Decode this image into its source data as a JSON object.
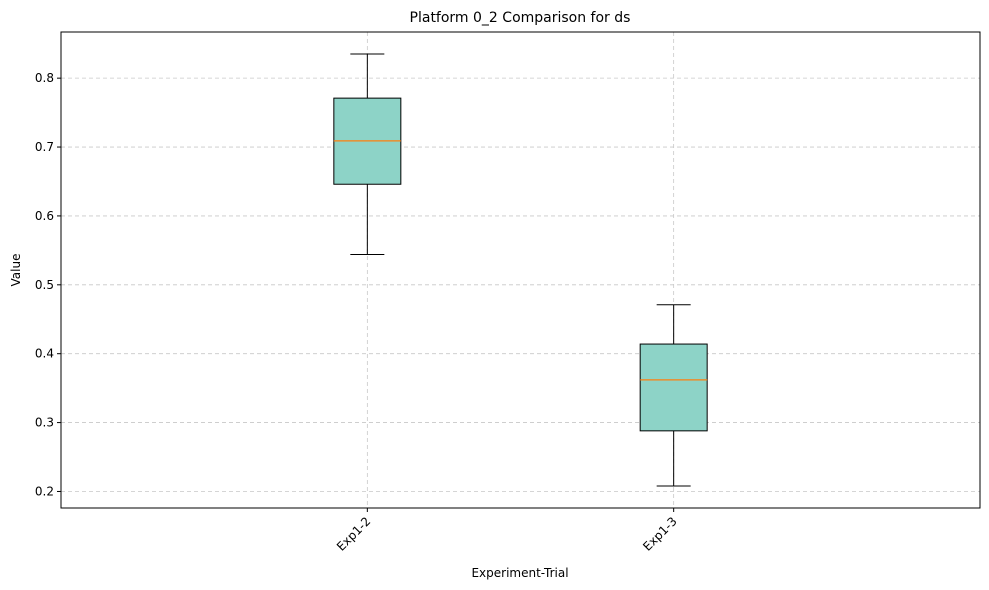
{
  "chart_data": {
    "type": "box",
    "title": "Platform 0_2 Comparison for ds",
    "xlabel": "Experiment-Trial",
    "ylabel": "Value",
    "categories": [
      "Exp1-2",
      "Exp1-3"
    ],
    "boxes": [
      {
        "name": "Exp1-2",
        "whisker_low": 0.544,
        "q1": 0.646,
        "median": 0.709,
        "q3": 0.771,
        "whisker_high": 0.835
      },
      {
        "name": "Exp1-3",
        "whisker_low": 0.208,
        "q1": 0.288,
        "median": 0.362,
        "q3": 0.414,
        "whisker_high": 0.471
      }
    ],
    "yticks": [
      0.2,
      0.3,
      0.4,
      0.5,
      0.6,
      0.7,
      0.8
    ],
    "ytick_labels": [
      "0.2",
      "0.3",
      "0.4",
      "0.5",
      "0.6",
      "0.7",
      "0.8"
    ],
    "ylim": [
      0.176,
      0.867
    ],
    "grid": true,
    "x_tick_rotation_deg": 45,
    "colors": {
      "box_fill": "#8dd3c7",
      "median": "#ff7f0e",
      "grid": "#c8c8c8",
      "axis": "#000000"
    }
  }
}
